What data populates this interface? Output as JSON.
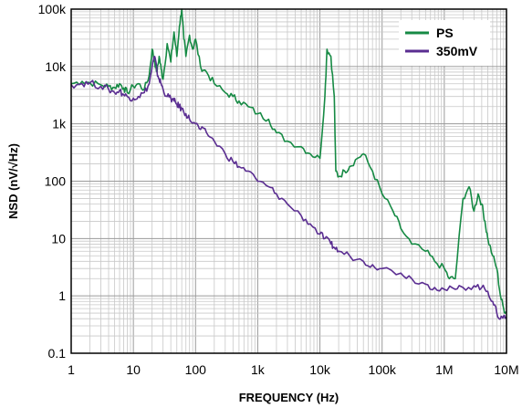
{
  "chart_data": {
    "type": "line",
    "xlabel": "FREQUENCY (Hz)",
    "ylabel": "NSD (nV/√Hz)",
    "x_scale": "log",
    "y_scale": "log",
    "xlim": [
      1,
      10000000
    ],
    "ylim": [
      0.1,
      100000
    ],
    "grid": true,
    "legend_position": "top-right",
    "x_ticks": [
      1,
      10,
      100,
      1000,
      10000,
      100000,
      1000000,
      10000000
    ],
    "x_tick_labels": [
      "1",
      "10",
      "100",
      "1k",
      "10k",
      "100k",
      "1M",
      "10M"
    ],
    "y_ticks": [
      0.1,
      1,
      10,
      100,
      1000,
      10000,
      100000
    ],
    "y_tick_labels": [
      "0.1",
      "1",
      "10",
      "100",
      "1k",
      "10k",
      "100k"
    ],
    "series": [
      {
        "name": "PS",
        "color": "#168a44",
        "x": [
          1,
          1.5,
          2,
          3,
          4,
          5,
          6,
          7,
          8,
          10,
          12,
          15,
          18,
          20,
          22,
          24,
          26,
          28,
          30,
          35,
          40,
          45,
          50,
          55,
          60,
          65,
          70,
          80,
          90,
          100,
          120,
          150,
          200,
          300,
          400,
          500,
          700,
          1000,
          1500,
          2000,
          3000,
          5000,
          7000,
          10000,
          12000,
          13000,
          15000,
          17000,
          18000,
          20000,
          25000,
          30000,
          40000,
          50000,
          70000,
          100000,
          150000,
          200000,
          300000,
          500000,
          700000,
          1000000,
          1200000,
          1500000,
          2000000,
          2500000,
          3000000,
          3500000,
          4000000,
          4500000,
          5000000,
          6000000,
          7000000,
          8000000,
          9000000,
          10000000
        ],
        "y": [
          5000,
          5500,
          5200,
          4800,
          4500,
          4300,
          5000,
          4200,
          3500,
          4500,
          5000,
          4000,
          7000,
          20000,
          12000,
          8000,
          15000,
          9000,
          6000,
          25000,
          12000,
          40000,
          15000,
          50000,
          100000,
          30000,
          15000,
          35000,
          20000,
          30000,
          10000,
          8000,
          5000,
          3500,
          3000,
          2500,
          2000,
          1500,
          1200,
          700,
          500,
          400,
          300,
          250,
          3000,
          20000,
          15000,
          3000,
          150,
          120,
          150,
          180,
          250,
          300,
          150,
          60,
          30,
          15,
          8,
          6,
          4,
          3,
          2,
          2,
          50,
          80,
          30,
          60,
          40,
          20,
          10,
          5,
          3,
          1,
          0.6,
          0.5
        ]
      },
      {
        "name": "350mV",
        "color": "#5a2d91",
        "x": [
          1,
          1.5,
          2,
          3,
          4,
          5,
          6,
          7,
          8,
          10,
          12,
          15,
          18,
          20,
          22,
          24,
          26,
          28,
          30,
          35,
          40,
          45,
          50,
          55,
          60,
          70,
          80,
          100,
          120,
          150,
          200,
          300,
          400,
          500,
          700,
          1000,
          1500,
          2000,
          3000,
          5000,
          7000,
          10000,
          12000,
          15000,
          17000,
          20000,
          30000,
          50000,
          70000,
          100000,
          200000,
          300000,
          500000,
          700000,
          1000000,
          1500000,
          2000000,
          3000000,
          4000000,
          5000000,
          6000000,
          7000000,
          8000000,
          9000000,
          10000000
        ],
        "y": [
          4800,
          5000,
          5200,
          4500,
          4000,
          3500,
          3800,
          3200,
          3000,
          2800,
          3000,
          3500,
          5000,
          10000,
          15000,
          8000,
          6000,
          5000,
          4000,
          3000,
          2800,
          2500,
          2200,
          2000,
          1800,
          1500,
          1200,
          1000,
          800,
          700,
          500,
          300,
          220,
          180,
          150,
          100,
          80,
          60,
          40,
          25,
          18,
          12,
          10,
          8,
          7,
          6,
          5,
          4,
          3.5,
          3,
          2.5,
          2,
          1.6,
          1.4,
          1.3,
          1.3,
          1.4,
          1.5,
          1.4,
          1.2,
          0.8,
          0.5,
          0.4,
          0.45,
          0.4
        ]
      }
    ]
  }
}
